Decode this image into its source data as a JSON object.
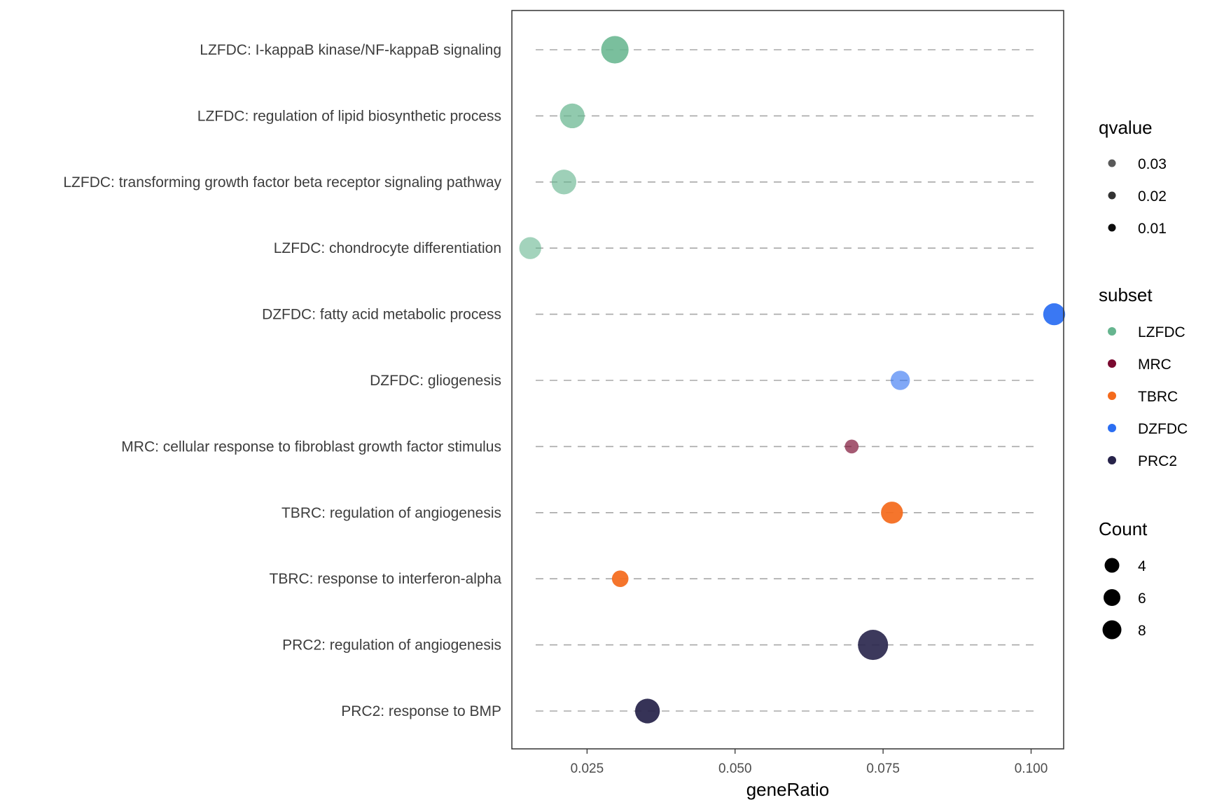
{
  "chart_data": {
    "type": "scatter",
    "xlabel": "geneRatio",
    "ylabel": "",
    "xlim": [
      0.0123,
      0.1055
    ],
    "xticks": [
      0.025,
      0.05,
      0.075,
      0.1
    ],
    "xtick_labels": [
      "0.025",
      "0.050",
      "0.075",
      "0.100"
    ],
    "grid": "dashed horizontal lines per category",
    "categories": [
      "LZFDC: I-kappaB kinase/NF-kappaB signaling",
      "LZFDC: regulation of lipid biosynthetic process",
      "LZFDC: transforming growth factor beta receptor signaling pathway",
      "LZFDC: chondrocyte differentiation",
      "DZFDC: fatty acid metabolic process",
      "DZFDC: gliogenesis",
      "MRC: cellular response to fibroblast growth factor stimulus",
      "TBRC: regulation of angiogenesis",
      "TBRC: response to interferon-alpha",
      "PRC2: regulation of angiogenesis",
      "PRC2: response to BMP"
    ],
    "points": [
      {
        "category": "LZFDC: I-kappaB kinase/NF-kappaB signaling",
        "x": 0.0297,
        "subset": "LZFDC",
        "count": 8,
        "qvalue": 0.012
      },
      {
        "category": "LZFDC: regulation of lipid biosynthetic process",
        "x": 0.0225,
        "subset": "LZFDC",
        "count": 7,
        "qvalue": 0.022
      },
      {
        "category": "LZFDC: transforming growth factor beta receptor signaling pathway",
        "x": 0.0211,
        "subset": "LZFDC",
        "count": 7,
        "qvalue": 0.028
      },
      {
        "category": "LZFDC: chondrocyte differentiation",
        "x": 0.0154,
        "subset": "LZFDC",
        "count": 6,
        "qvalue": 0.03
      },
      {
        "category": "DZFDC: fatty acid metabolic process",
        "x": 0.1039,
        "subset": "DZFDC",
        "count": 6,
        "qvalue": 0.008
      },
      {
        "category": "DZFDC: gliogenesis",
        "x": 0.0779,
        "subset": "DZFDC",
        "count": 5,
        "qvalue": 0.03
      },
      {
        "category": "MRC: cellular response to fibroblast growth factor stimulus",
        "x": 0.0697,
        "subset": "MRC",
        "count": 3,
        "qvalue": 0.025
      },
      {
        "category": "TBRC: regulation of angiogenesis",
        "x": 0.0765,
        "subset": "TBRC",
        "count": 6,
        "qvalue": 0.008
      },
      {
        "category": "TBRC: response to interferon-alpha",
        "x": 0.0306,
        "subset": "TBRC",
        "count": 4,
        "qvalue": 0.008
      },
      {
        "category": "PRC2: regulation of angiogenesis",
        "x": 0.0733,
        "subset": "PRC2",
        "count": 9,
        "qvalue": 0.01
      },
      {
        "category": "PRC2: response to BMP",
        "x": 0.0352,
        "subset": "PRC2",
        "count": 7,
        "qvalue": 0.008
      }
    ],
    "legend_qvalue": {
      "title": "qvalue",
      "entries": [
        "0.03",
        "0.02",
        "0.01"
      ]
    },
    "legend_subset": {
      "title": "subset",
      "entries": [
        {
          "label": "LZFDC",
          "color": "#66b58f"
        },
        {
          "label": "MRC",
          "color": "#7a0a30"
        },
        {
          "label": "TBRC",
          "color": "#f46a1c"
        },
        {
          "label": "DZFDC",
          "color": "#2b6ef2"
        },
        {
          "label": "PRC2",
          "color": "#27234a"
        }
      ]
    },
    "legend_count": {
      "title": "Count",
      "entries": [
        "4",
        "6",
        "8"
      ]
    },
    "legend_placement": "right"
  }
}
